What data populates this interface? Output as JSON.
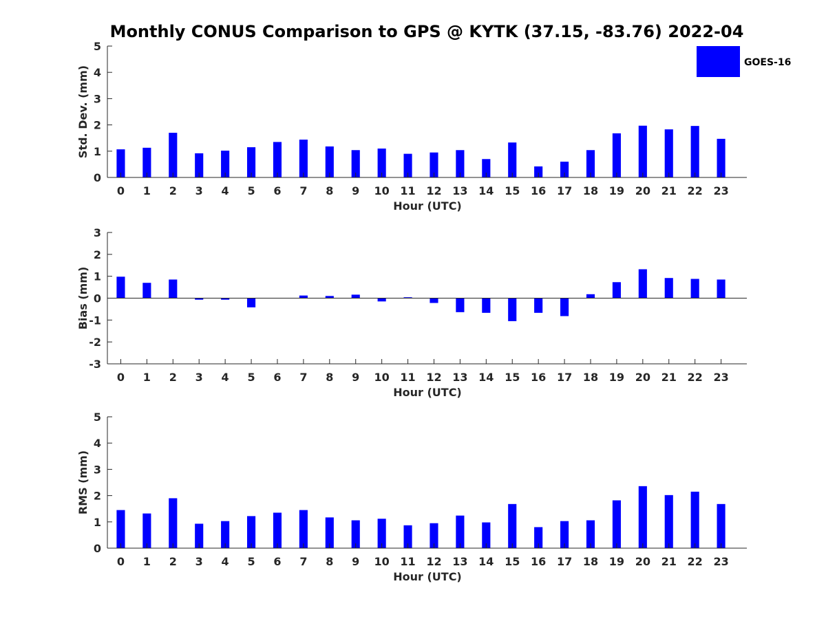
{
  "title": "Monthly CONUS Comparison to GPS @ KYTK (37.15, -83.76) 2022-04",
  "legend": {
    "label": "GOES-16",
    "color": "#0000ff",
    "placement": "top-right"
  },
  "chart_data": [
    {
      "type": "bar",
      "xlabel": "Hour (UTC)",
      "ylabel": "Std. Dev. (mm)",
      "ylim": [
        0,
        5
      ],
      "yticks": [
        0,
        1,
        2,
        3,
        4,
        5
      ],
      "categories": [
        "0",
        "1",
        "2",
        "3",
        "4",
        "5",
        "6",
        "7",
        "8",
        "9",
        "10",
        "11",
        "12",
        "13",
        "14",
        "15",
        "16",
        "17",
        "18",
        "19",
        "20",
        "21",
        "22",
        "23"
      ],
      "series": [
        {
          "name": "GOES-16",
          "color": "#0000ff",
          "values": [
            1.07,
            1.13,
            1.7,
            0.92,
            1.02,
            1.15,
            1.35,
            1.44,
            1.18,
            1.04,
            1.1,
            0.9,
            0.95,
            1.04,
            0.7,
            1.33,
            0.42,
            0.6,
            1.04,
            1.68,
            1.97,
            1.83,
            1.96,
            1.47
          ]
        }
      ]
    },
    {
      "type": "bar",
      "xlabel": "Hour (UTC)",
      "ylabel": "Bias (mm)",
      "ylim": [
        -3,
        3
      ],
      "yticks": [
        -3,
        -2,
        -1,
        0,
        1,
        2,
        3
      ],
      "categories": [
        "0",
        "1",
        "2",
        "3",
        "4",
        "5",
        "6",
        "7",
        "8",
        "9",
        "10",
        "11",
        "12",
        "13",
        "14",
        "15",
        "16",
        "17",
        "18",
        "19",
        "20",
        "21",
        "22",
        "23"
      ],
      "series": [
        {
          "name": "GOES-16",
          "color": "#0000ff",
          "values": [
            0.98,
            0.7,
            0.85,
            -0.07,
            -0.07,
            -0.42,
            0.0,
            0.12,
            0.1,
            0.16,
            -0.15,
            0.04,
            -0.22,
            -0.64,
            -0.67,
            -1.05,
            -0.67,
            -0.82,
            0.18,
            0.73,
            1.32,
            0.92,
            0.88,
            0.85
          ]
        }
      ]
    },
    {
      "type": "bar",
      "xlabel": "Hour (UTC)",
      "ylabel": "RMS (mm)",
      "ylim": [
        0,
        5
      ],
      "yticks": [
        0,
        1,
        2,
        3,
        4,
        5
      ],
      "categories": [
        "0",
        "1",
        "2",
        "3",
        "4",
        "5",
        "6",
        "7",
        "8",
        "9",
        "10",
        "11",
        "12",
        "13",
        "14",
        "15",
        "16",
        "17",
        "18",
        "19",
        "20",
        "21",
        "22",
        "23"
      ],
      "series": [
        {
          "name": "GOES-16",
          "color": "#0000ff",
          "values": [
            1.45,
            1.32,
            1.9,
            0.93,
            1.03,
            1.22,
            1.35,
            1.45,
            1.17,
            1.06,
            1.12,
            0.87,
            0.95,
            1.24,
            0.98,
            1.68,
            0.8,
            1.03,
            1.06,
            1.82,
            2.36,
            2.02,
            2.15,
            1.68
          ]
        }
      ]
    }
  ]
}
